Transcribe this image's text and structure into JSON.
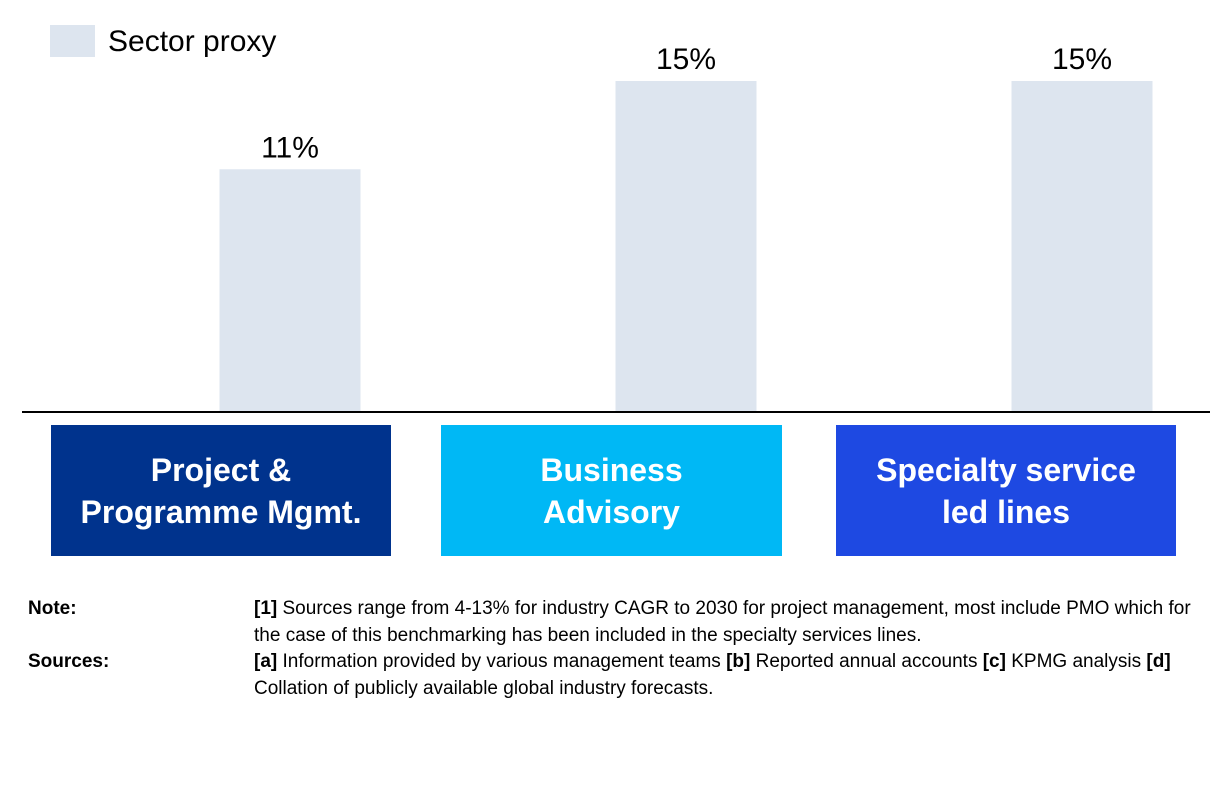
{
  "chart_data": {
    "type": "bar",
    "title": "",
    "xlabel": "",
    "ylabel": "",
    "ylim": [
      0,
      15
    ],
    "categories": [
      "Project & Programme Mgmt.",
      "Business Advisory",
      "Specialty service led lines"
    ],
    "series": [
      {
        "name": "Sector proxy",
        "values": [
          11,
          15,
          15
        ],
        "labels": [
          "11%",
          "15%",
          "15%"
        ],
        "color": "#DDE5EF"
      }
    ],
    "legend": {
      "position": "top-left"
    },
    "grid": false
  },
  "categories_display": [
    {
      "line1": "Project &",
      "line2": "Programme Mgmt.",
      "color": "#00338D"
    },
    {
      "line1": "Business",
      "line2": "Advisory",
      "color": "#00B8F5"
    },
    {
      "line1": "Specialty service",
      "line2": "led lines",
      "color": "#1E49E2"
    }
  ],
  "notes": {
    "note_label": "Note:",
    "note_ref": "[1]",
    "note_text": " Sources range from 4-13% for industry CAGR to 2030 for project management, most include PMO which for the case of this benchmarking has been included in the specialty services lines.",
    "sources_label": "Sources:",
    "sources": [
      {
        "ref": "[a]",
        "text": " Information provided by various management teams "
      },
      {
        "ref": "[b]",
        "text": " Reported annual accounts "
      },
      {
        "ref": "[c]",
        "text": " KPMG analysis "
      },
      {
        "ref": "[d]",
        "text": " Collation of publicly available global industry forecasts."
      }
    ]
  },
  "colors": {
    "bar": "#DDE5EF",
    "axis": "#000000",
    "text": "#000000"
  }
}
